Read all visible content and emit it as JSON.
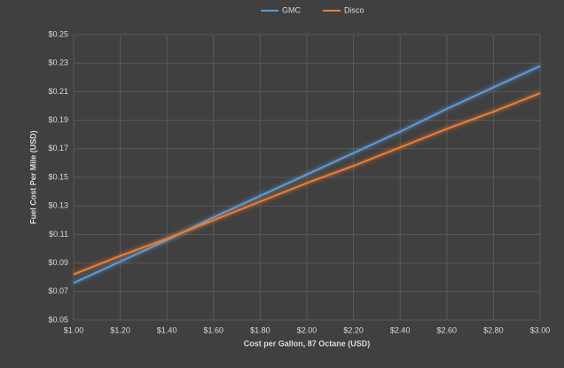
{
  "chart_data": {
    "type": "line",
    "x_label": "Cost per Gallon, 87 Octane (USD)",
    "y_label": "Fuel Cost Per Mile (USD)",
    "x": [
      1.0,
      1.2,
      1.4,
      1.6,
      1.8,
      2.0,
      2.2,
      2.4,
      2.6,
      2.8,
      3.0
    ],
    "series": [
      {
        "name": "GMC",
        "color": "#5b9bd5",
        "values": [
          0.076,
          0.091,
          0.106,
          0.122,
          0.137,
          0.152,
          0.167,
          0.182,
          0.198,
          0.213,
          0.228
        ]
      },
      {
        "name": "Disco",
        "color": "#ed7d31",
        "values": [
          0.082,
          0.095,
          0.107,
          0.12,
          0.133,
          0.146,
          0.158,
          0.171,
          0.184,
          0.196,
          0.209
        ]
      }
    ],
    "xlim": [
      1.0,
      3.0
    ],
    "xticks": [
      {
        "value": 1.0,
        "label": "$1.00"
      },
      {
        "value": 1.2,
        "label": "$1.20"
      },
      {
        "value": 1.4,
        "label": "$1.40"
      },
      {
        "value": 1.6,
        "label": "$1.60"
      },
      {
        "value": 1.8,
        "label": "$1.80"
      },
      {
        "value": 2.0,
        "label": "$2.00"
      },
      {
        "value": 2.2,
        "label": "$2.20"
      },
      {
        "value": 2.4,
        "label": "$2.40"
      },
      {
        "value": 2.6,
        "label": "$2.60"
      },
      {
        "value": 2.8,
        "label": "$2.80"
      },
      {
        "value": 3.0,
        "label": "$3.00"
      }
    ],
    "ylim": [
      0.05,
      0.25
    ],
    "yticks": [
      {
        "value": 0.05,
        "label": "$0.05"
      },
      {
        "value": 0.07,
        "label": "$0.07"
      },
      {
        "value": 0.09,
        "label": "$0.09"
      },
      {
        "value": 0.11,
        "label": "$0.11"
      },
      {
        "value": 0.13,
        "label": "$0.13"
      },
      {
        "value": 0.15,
        "label": "$0.15"
      },
      {
        "value": 0.17,
        "label": "$0.17"
      },
      {
        "value": 0.19,
        "label": "$0.19"
      },
      {
        "value": 0.21,
        "label": "$0.21"
      },
      {
        "value": 0.23,
        "label": "$0.23"
      },
      {
        "value": 0.25,
        "label": "$0.25"
      }
    ],
    "grid": true,
    "legend": "top"
  }
}
